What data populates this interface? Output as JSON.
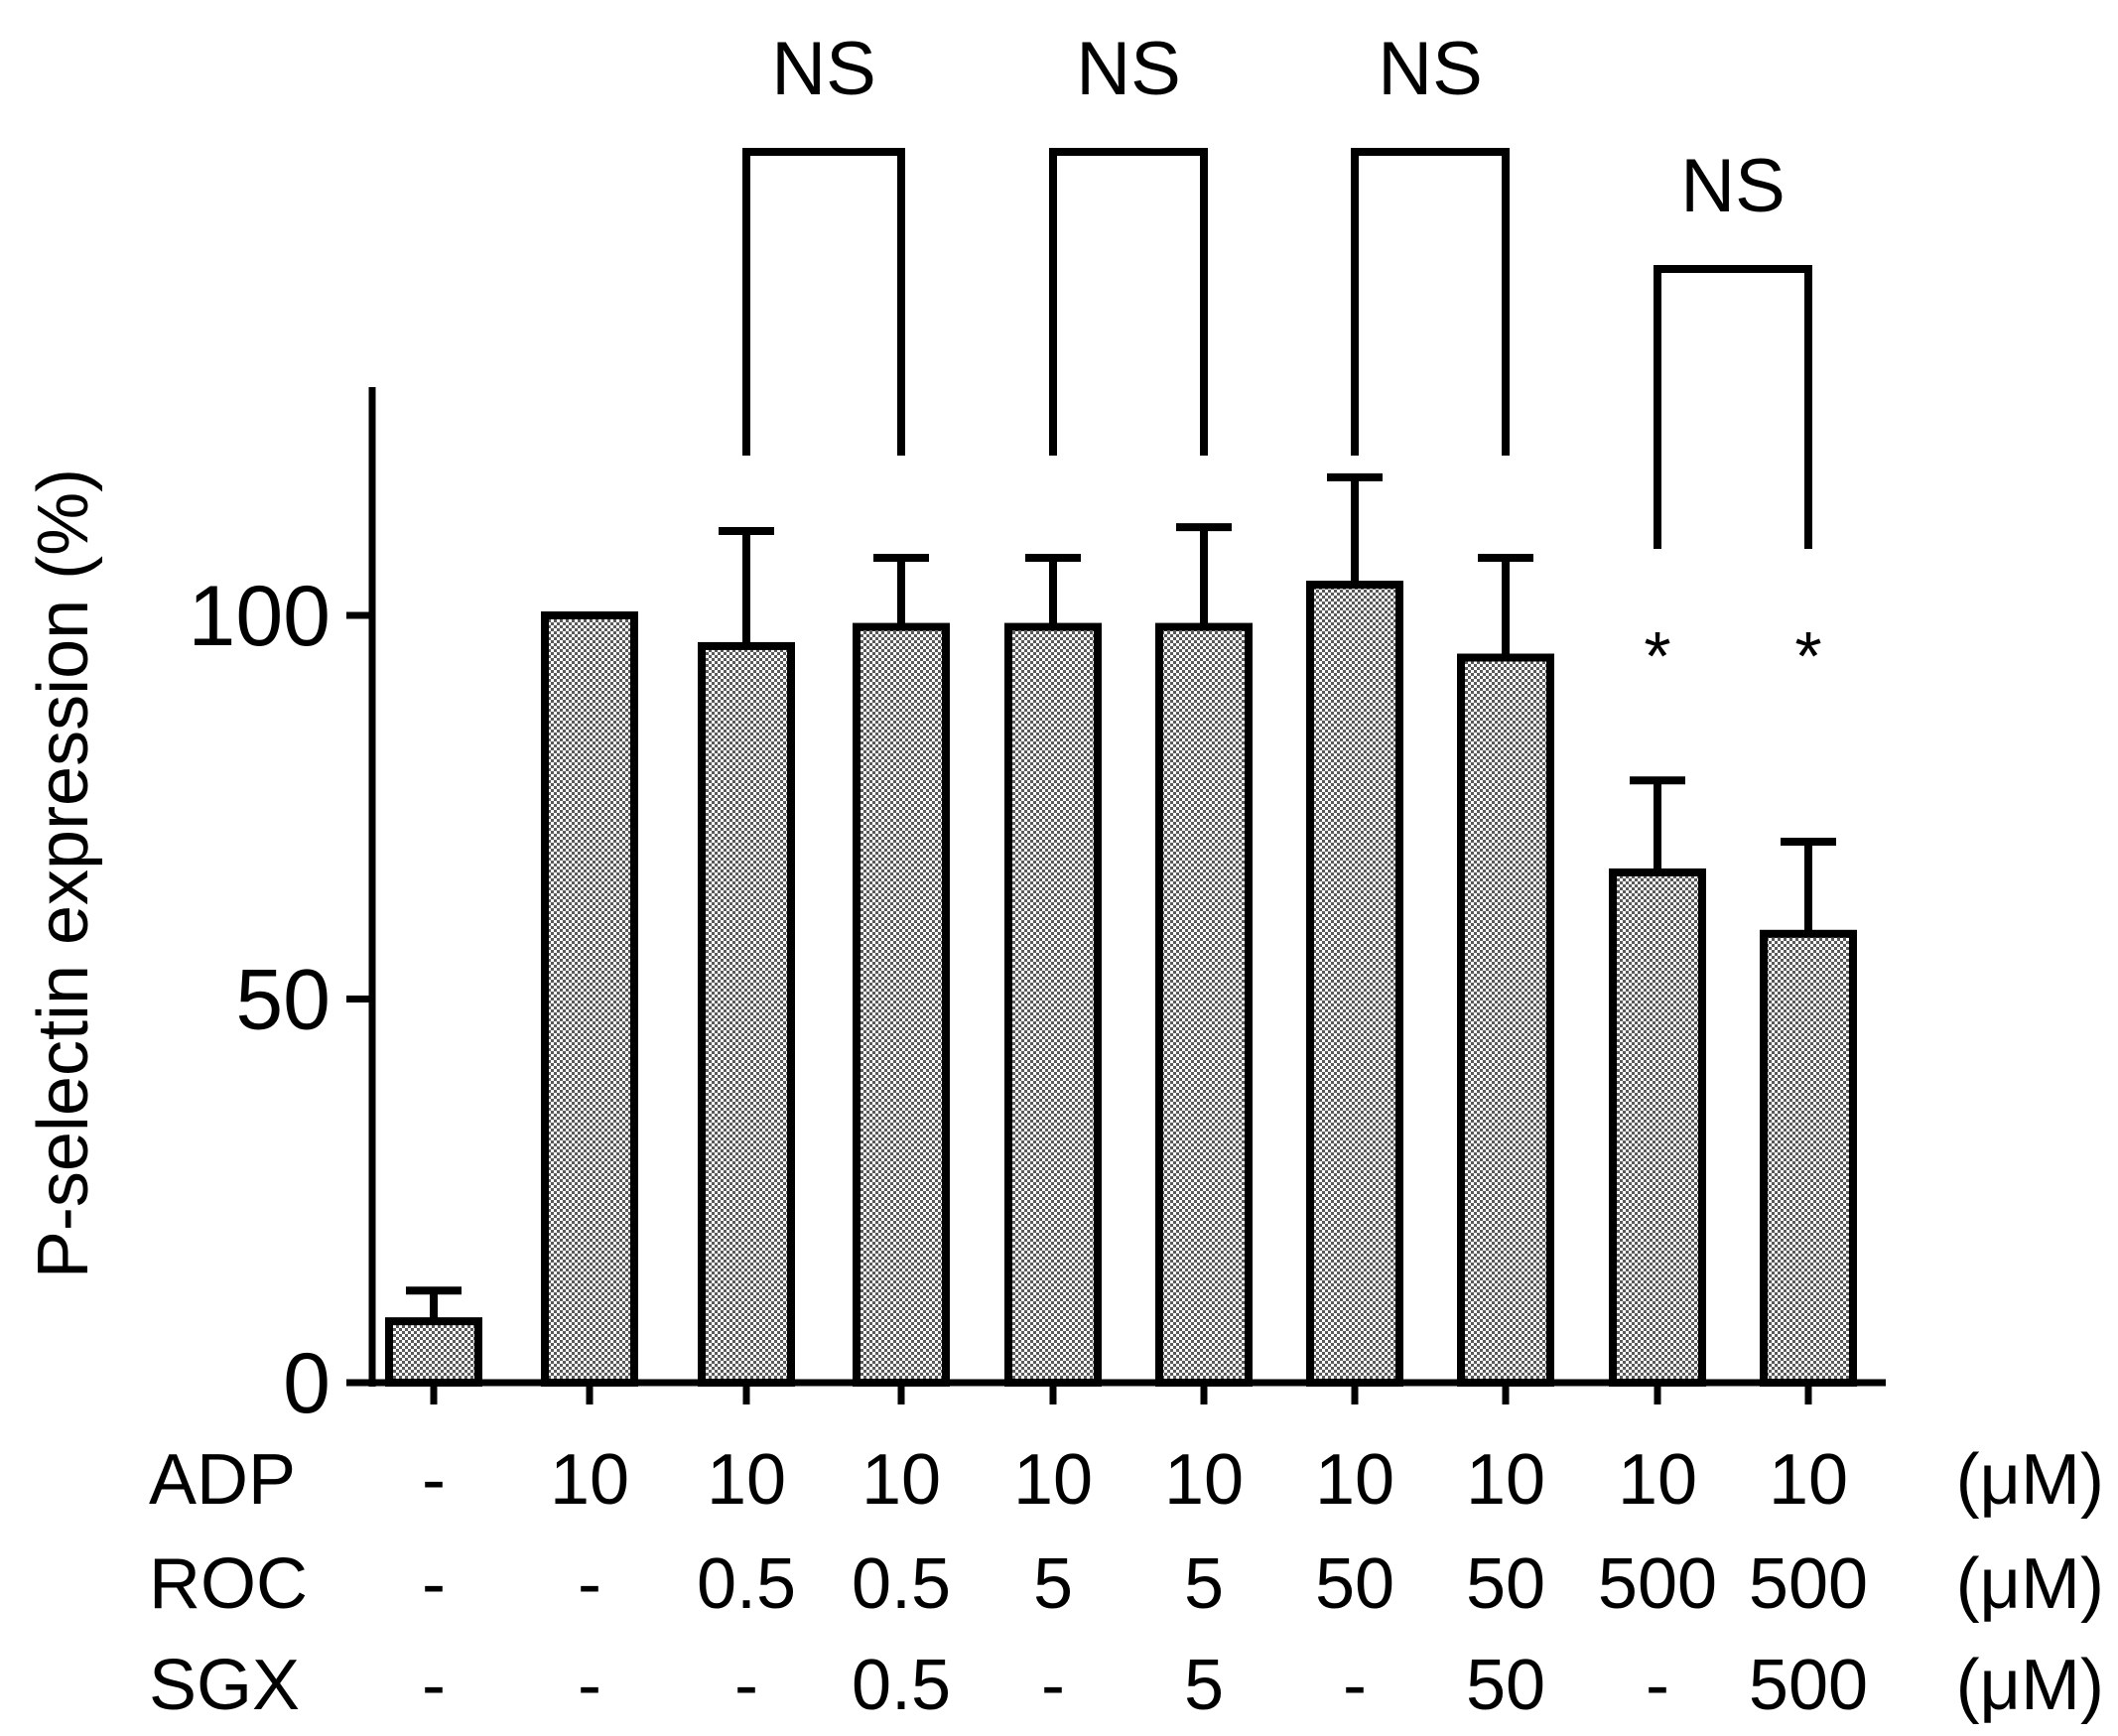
{
  "chart_data": {
    "type": "bar",
    "title": "",
    "ylabel": "P-selectin expression (%)",
    "xlabel": "",
    "ylim": [
      0,
      130
    ],
    "yticks": [
      0,
      50,
      100
    ],
    "grid": false,
    "series": [
      {
        "name": "P-selectin expression",
        "values": [
          8,
          100,
          96,
          98.5,
          98.5,
          98.5,
          104,
          94.5,
          66.5,
          58.5
        ],
        "errors": [
          4,
          0,
          15,
          9,
          9,
          13,
          14,
          13,
          12,
          12
        ]
      }
    ],
    "conditions": {
      "rows": [
        {
          "label": "ADP",
          "unit": "(μM)",
          "values": [
            "-",
            "10",
            "10",
            "10",
            "10",
            "10",
            "10",
            "10",
            "10",
            "10"
          ]
        },
        {
          "label": "ROC",
          "unit": "(μM)",
          "values": [
            "-",
            "-",
            "0.5",
            "0.5",
            "5",
            "5",
            "50",
            "50",
            "500",
            "500"
          ]
        },
        {
          "label": "SGX",
          "unit": "(μM)",
          "values": [
            "-",
            "-",
            "-",
            "0.5",
            "-",
            "5",
            "-",
            "50",
            "-",
            "500"
          ]
        }
      ]
    },
    "annotations": [
      {
        "type": "bracket",
        "from": 2,
        "to": 3,
        "text": "NS"
      },
      {
        "type": "bracket",
        "from": 4,
        "to": 5,
        "text": "NS"
      },
      {
        "type": "bracket",
        "from": 6,
        "to": 7,
        "text": "NS"
      },
      {
        "type": "bracket",
        "from": 8,
        "to": 9,
        "text": "NS"
      },
      {
        "type": "marker",
        "index": 8,
        "text": "*"
      },
      {
        "type": "marker",
        "index": 9,
        "text": "*"
      }
    ]
  },
  "colors": {
    "bar_fill_light": "#ffffff",
    "bar_fill_dark": "#5a5a5a",
    "stroke": "#000000"
  }
}
